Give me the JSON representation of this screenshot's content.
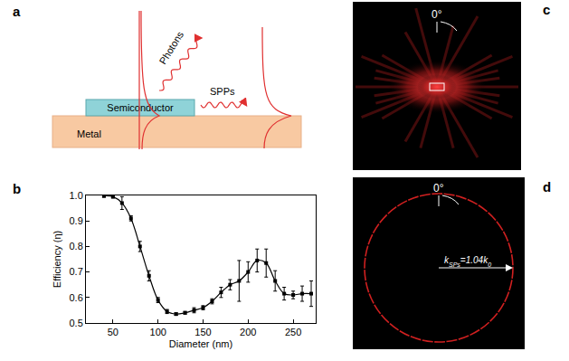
{
  "chart_data": {
    "type": "scatter",
    "x": [
      40,
      50,
      60,
      70,
      80,
      90,
      100,
      110,
      120,
      130,
      140,
      150,
      160,
      170,
      180,
      190,
      200,
      210,
      220,
      230,
      240,
      250,
      260,
      270
    ],
    "values": [
      0.998,
      0.995,
      0.97,
      0.91,
      0.8,
      0.685,
      0.59,
      0.545,
      0.535,
      0.54,
      0.55,
      0.56,
      0.585,
      0.62,
      0.65,
      0.665,
      0.7,
      0.745,
      0.735,
      0.665,
      0.615,
      0.61,
      0.615,
      0.615
    ],
    "errors": [
      0.005,
      0.005,
      0.025,
      0.01,
      0.02,
      0.02,
      0.01,
      0.008,
      0.005,
      0.005,
      0.01,
      0.008,
      0.01,
      0.02,
      0.02,
      0.08,
      0.04,
      0.045,
      0.055,
      0.04,
      0.025,
      0.015,
      0.03,
      0.05
    ],
    "xlabel": "Diameter (nm)",
    "ylabel": "Efficiency (η)",
    "xlim": [
      20,
      275
    ],
    "ylim": [
      0.5,
      1
    ],
    "xticks": [
      50,
      100,
      150,
      200,
      250
    ],
    "yticks": [
      0.5,
      0.6,
      0.7,
      0.8,
      0.9,
      {
        "value": 1,
        "label": "1.0"
      }
    ],
    "color": "#000000",
    "marker": "square",
    "line_style": "solid",
    "grid": false
  },
  "panels": {
    "a": {
      "label": "a",
      "photons": "Photons",
      "spps": "SPPs",
      "semiconductor": "Semiconductor",
      "metal": "Metal"
    },
    "b": {
      "label": "b"
    },
    "c": {
      "label": "c",
      "angle": "0°"
    },
    "d": {
      "label": "d",
      "angle": "0°",
      "k_label": [
        {
          "text": "k",
          "sub": false
        },
        {
          "text": "SPs",
          "sub": true
        },
        {
          "text": "=1.04",
          "sub": false
        },
        {
          "text": "k",
          "sub": false
        },
        {
          "text": "0",
          "sub": true
        }
      ]
    }
  }
}
